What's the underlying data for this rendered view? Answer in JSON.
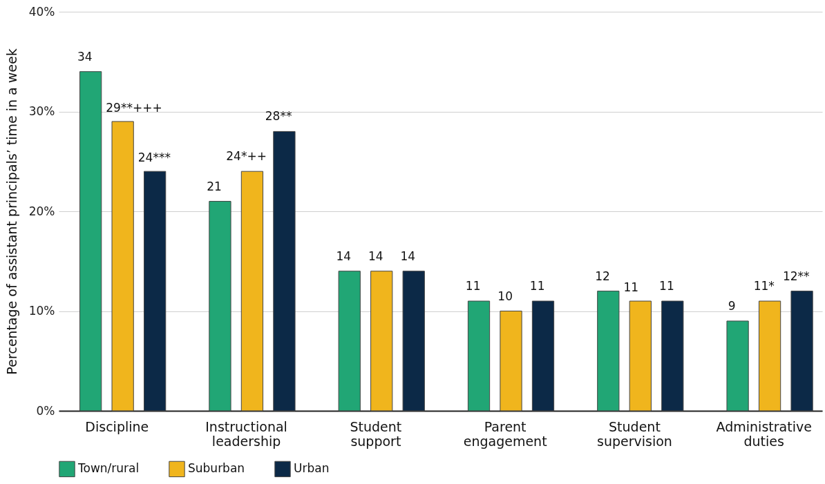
{
  "chart_data": {
    "type": "bar",
    "ylabel": "Percentage of assistant principals’ time in a week",
    "categories": [
      "Discipline",
      "Instructional leadership",
      "Student support",
      "Parent engagement",
      "Student supervision",
      "Administrative duties"
    ],
    "series": [
      {
        "name": "Town/rural",
        "color": "#21a675",
        "values": [
          34,
          21,
          14,
          11,
          12,
          9
        ],
        "value_labels": [
          "34",
          "21",
          "14",
          "11",
          "12",
          "9"
        ]
      },
      {
        "name": "Suburban",
        "color": "#f0b51d",
        "values": [
          29,
          24,
          14,
          10,
          11,
          11
        ],
        "value_labels": [
          "29**+++",
          "24*++",
          "14",
          "10",
          "11",
          "11*"
        ]
      },
      {
        "name": "Urban",
        "color": "#0c2947",
        "values": [
          24,
          28,
          14,
          11,
          11,
          12
        ],
        "value_labels": [
          "24***",
          "28**",
          "14",
          "11",
          "11",
          "12**"
        ]
      }
    ],
    "ylim": [
      0,
      40
    ],
    "yticks": [
      {
        "value": 0,
        "label": "0%"
      },
      {
        "value": 10,
        "label": "10%"
      },
      {
        "value": 20,
        "label": "20%"
      },
      {
        "value": 30,
        "label": "30%"
      },
      {
        "value": 40,
        "label": "40%"
      }
    ],
    "grid": "y",
    "legend": "bottom"
  }
}
